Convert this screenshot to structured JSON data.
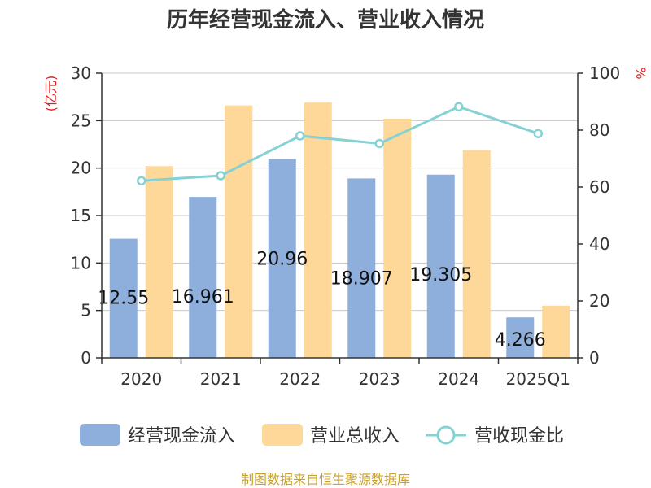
{
  "chart_data": {
    "type": "bar",
    "title": "历年经营现金流入、营业收入情况",
    "categories": [
      "2020",
      "2021",
      "2022",
      "2023",
      "2024",
      "2025Q1"
    ],
    "y_left": {
      "unit": "(亿元)",
      "min": 0,
      "max": 30,
      "ticks": [
        "0",
        "5",
        "10",
        "15",
        "20",
        "25",
        "30"
      ]
    },
    "y_right": {
      "unit": "%",
      "min": 0,
      "max": 100,
      "ticks": [
        "0",
        "20",
        "40",
        "60",
        "80",
        "100"
      ]
    },
    "series": [
      {
        "name": "经营现金流入",
        "type": "bar",
        "axis": "left",
        "color": "#8eaedb",
        "values": [
          12.55,
          16.961,
          20.96,
          18.907,
          19.305,
          4.266
        ],
        "labels": [
          "12.55",
          "16.961",
          "20.96",
          "18.907",
          "19.305",
          "4.266"
        ]
      },
      {
        "name": "营业总收入",
        "type": "bar",
        "axis": "left",
        "color": "#fdd898",
        "values": [
          20.2,
          26.6,
          26.9,
          25.2,
          21.9,
          5.5
        ]
      },
      {
        "name": "营收现金比",
        "type": "line",
        "axis": "right",
        "color": "#86d1d4",
        "values": [
          62.2,
          64.0,
          78.0,
          75.3,
          88.2,
          78.8
        ]
      }
    ],
    "legend_position": "bottom",
    "grid": true
  },
  "source_text": "制图数据来自恒生聚源数据库"
}
